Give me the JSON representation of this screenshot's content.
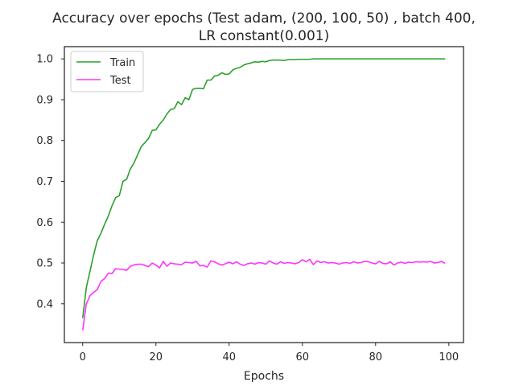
{
  "chart_data": {
    "type": "line",
    "title_lines": [
      "Accuracy over epochs (Test adam, (200, 100, 50) , batch 400,",
      "LR constant(0.001)"
    ],
    "xlabel": "Epochs",
    "ylabel": "",
    "xlim": [
      -5,
      104
    ],
    "ylim": [
      0.305,
      1.03
    ],
    "x_ticks": [
      0,
      20,
      40,
      60,
      80,
      100
    ],
    "x_tick_labels": [
      "0",
      "20",
      "40",
      "60",
      "80",
      "100"
    ],
    "y_ticks": [
      0.4,
      0.5,
      0.6,
      0.7,
      0.8,
      0.9,
      1.0
    ],
    "y_tick_labels": [
      "0.4",
      "0.5",
      "0.6",
      "0.7",
      "0.8",
      "0.9",
      "1.0"
    ],
    "grid": false,
    "legend_position": "upper-left",
    "x_start": 0,
    "series": [
      {
        "name": "Train",
        "color": "#2ca02c",
        "values": [
          0.365,
          0.44,
          0.48,
          0.52,
          0.555,
          0.573,
          0.595,
          0.615,
          0.64,
          0.66,
          0.665,
          0.7,
          0.705,
          0.73,
          0.745,
          0.765,
          0.785,
          0.795,
          0.805,
          0.825,
          0.826,
          0.84,
          0.85,
          0.865,
          0.876,
          0.878,
          0.895,
          0.888,
          0.905,
          0.9,
          0.925,
          0.928,
          0.928,
          0.927,
          0.948,
          0.948,
          0.958,
          0.96,
          0.966,
          0.962,
          0.963,
          0.973,
          0.977,
          0.979,
          0.985,
          0.988,
          0.99,
          0.993,
          0.992,
          0.994,
          0.993,
          0.996,
          0.997,
          0.997,
          0.997,
          0.996,
          0.998,
          0.998,
          0.998,
          0.999,
          0.999,
          0.999,
          0.999,
          1.0,
          1.0,
          1.0,
          1.0,
          1.0,
          1.0,
          1.0,
          1.0,
          1.0,
          1.0,
          1.0,
          1.0,
          1.0,
          1.0,
          1.0,
          1.0,
          1.0,
          1.0,
          1.0,
          1.0,
          1.0,
          1.0,
          1.0,
          1.0,
          1.0,
          1.0,
          1.0,
          1.0,
          1.0,
          1.0,
          1.0,
          1.0,
          1.0,
          1.0,
          1.0,
          1.0,
          1.0
        ]
      },
      {
        "name": "Test",
        "color": "#ff33ff",
        "values": [
          0.335,
          0.4,
          0.42,
          0.428,
          0.435,
          0.455,
          0.462,
          0.475,
          0.474,
          0.486,
          0.485,
          0.484,
          0.482,
          0.492,
          0.495,
          0.497,
          0.497,
          0.494,
          0.491,
          0.5,
          0.495,
          0.488,
          0.504,
          0.492,
          0.5,
          0.498,
          0.497,
          0.496,
          0.502,
          0.501,
          0.5,
          0.504,
          0.493,
          0.494,
          0.49,
          0.505,
          0.503,
          0.498,
          0.495,
          0.498,
          0.502,
          0.498,
          0.503,
          0.497,
          0.494,
          0.498,
          0.5,
          0.497,
          0.501,
          0.5,
          0.497,
          0.505,
          0.5,
          0.497,
          0.503,
          0.499,
          0.501,
          0.5,
          0.498,
          0.501,
          0.508,
          0.503,
          0.509,
          0.496,
          0.505,
          0.501,
          0.503,
          0.5,
          0.501,
          0.5,
          0.497,
          0.5,
          0.501,
          0.499,
          0.503,
          0.5,
          0.501,
          0.504,
          0.503,
          0.5,
          0.498,
          0.504,
          0.499,
          0.498,
          0.503,
          0.495,
          0.5,
          0.502,
          0.499,
          0.502,
          0.501,
          0.503,
          0.502,
          0.503,
          0.502,
          0.504,
          0.5,
          0.501,
          0.504,
          0.499
        ]
      }
    ]
  }
}
